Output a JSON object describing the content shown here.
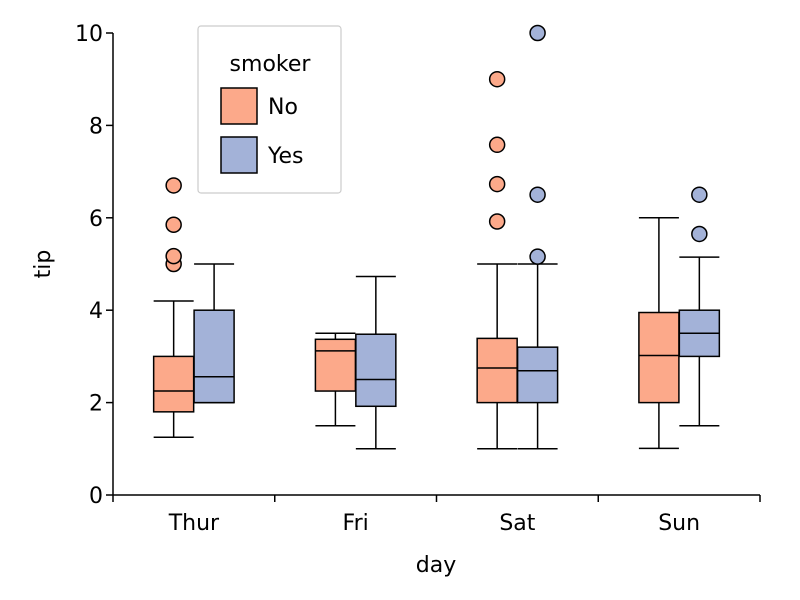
{
  "chart_data": {
    "type": "box",
    "xlabel": "day",
    "ylabel": "tip",
    "categories": [
      "Thur",
      "Fri",
      "Sat",
      "Sun"
    ],
    "ylim": [
      0,
      10
    ],
    "yticks": [
      0,
      2,
      4,
      6,
      8,
      10
    ],
    "grid": false,
    "legend": {
      "title": "smoker",
      "placement": "top-left"
    },
    "series": [
      {
        "name": "No",
        "color": "#fca98a",
        "boxes": [
          {
            "whisker_low": 1.25,
            "q1": 1.8,
            "median": 2.25,
            "q3": 3.0,
            "whisker_high": 4.2,
            "outliers": [
              5.0,
              5.17,
              5.85,
              6.7
            ]
          },
          {
            "whisker_low": 1.5,
            "q1": 2.25,
            "median": 3.12,
            "q3": 3.37,
            "whisker_high": 3.5,
            "outliers": []
          },
          {
            "whisker_low": 1.0,
            "q1": 2.0,
            "median": 2.75,
            "q3": 3.39,
            "whisker_high": 5.0,
            "outliers": [
              5.92,
              6.73,
              7.58,
              9.0
            ]
          },
          {
            "whisker_low": 1.01,
            "q1": 2.0,
            "median": 3.02,
            "q3": 3.95,
            "whisker_high": 6.0,
            "outliers": []
          }
        ]
      },
      {
        "name": "Yes",
        "color": "#a3b2d8",
        "boxes": [
          {
            "whisker_low": 2.0,
            "q1": 2.0,
            "median": 2.56,
            "q3": 4.0,
            "whisker_high": 5.0,
            "outliers": []
          },
          {
            "whisker_low": 1.0,
            "q1": 1.92,
            "median": 2.5,
            "q3": 3.48,
            "whisker_high": 4.73,
            "outliers": []
          },
          {
            "whisker_low": 1.0,
            "q1": 2.0,
            "median": 2.69,
            "q3": 3.2,
            "whisker_high": 5.0,
            "outliers": [
              5.16,
              6.5,
              10.0
            ]
          },
          {
            "whisker_low": 1.5,
            "q1": 3.0,
            "median": 3.5,
            "q3": 4.0,
            "whisker_high": 5.15,
            "outliers": [
              5.65,
              6.5
            ]
          }
        ]
      }
    ]
  }
}
